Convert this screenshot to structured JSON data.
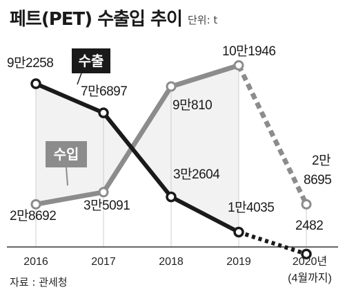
{
  "chart_data": {
    "type": "line",
    "title": "페트(PET) 수출입 추이",
    "unit": "단위: t",
    "source": "자료 : 관세청",
    "categories": [
      "2016",
      "2017",
      "2018",
      "2019",
      "2020년"
    ],
    "category_note": "(4월까지)",
    "ylim": [
      0,
      120000
    ],
    "grid": false,
    "legend": "inline",
    "series": [
      {
        "name": "수출",
        "color": "#1a1a1a",
        "values": [
          92258,
          76897,
          32604,
          14035,
          2482
        ],
        "labels": [
          "9만2258",
          "7만6897",
          "3만2604",
          "1만4035",
          "2482"
        ],
        "dashed_last_segment": true
      },
      {
        "name": "수입",
        "color": "#8c8c8c",
        "values": [
          28692,
          35091,
          90810,
          101946,
          28695
        ],
        "labels": [
          "2만8692",
          "3만5091",
          "9만810",
          "10만1946",
          "2만\n8695"
        ],
        "dashed_last_segment": true
      }
    ]
  }
}
